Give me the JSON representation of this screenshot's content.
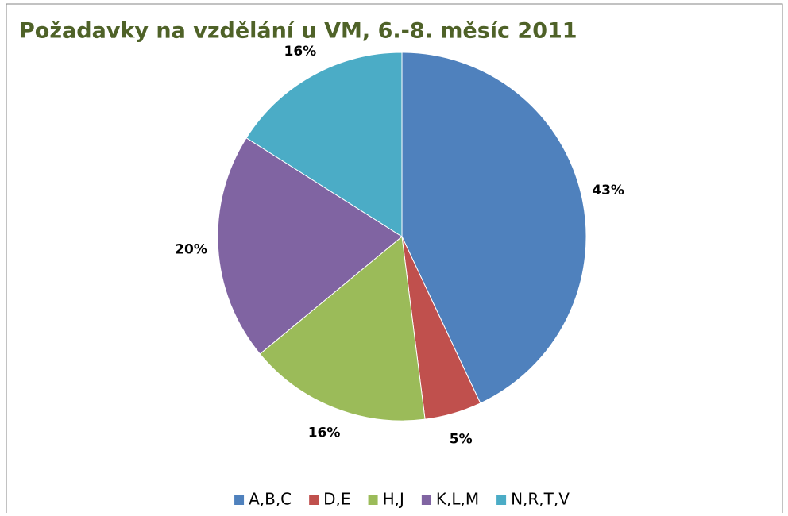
{
  "chart_data": {
    "type": "pie",
    "title": "Požadavky na vzdělání u VM, 6.-8. měsíc 2011",
    "categories": [
      "A,B,C",
      "D,E",
      "H,J",
      "K,L,M",
      "N,R,T,V"
    ],
    "values": [
      43,
      5,
      16,
      20,
      16
    ],
    "value_labels": [
      "43%",
      "5%",
      "16%",
      "20%",
      "16%"
    ],
    "colors": [
      "#4f81bd",
      "#c0504d",
      "#9bbb59",
      "#8064a2",
      "#4bacc6"
    ],
    "legend": "bottom"
  }
}
